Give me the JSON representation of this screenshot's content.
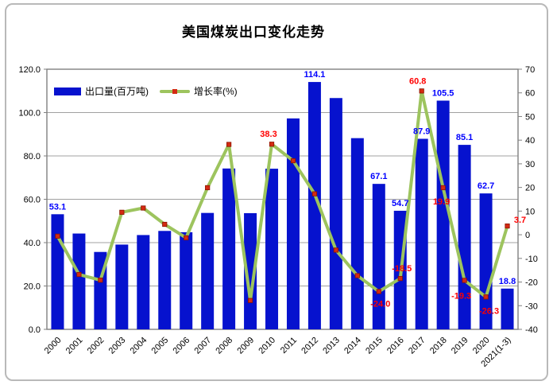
{
  "title": "美国煤炭出口变化走势",
  "legend": {
    "bar_label": "出口量(百万吨)",
    "line_label": "增长率(%)"
  },
  "colors": {
    "bar": "#0612CE",
    "bar_label": "#0000FF",
    "line": "#9DC45E",
    "marker": "#D42A12",
    "marker_stroke": "#8B1400",
    "line_label": "#FF0000",
    "grid": "#A0A0A0",
    "frame": "#808080",
    "axis_text": "#000000"
  },
  "chart_data": {
    "type": "bar",
    "combo": "bar + line (dual axis)",
    "title": "美国煤炭出口变化走势",
    "categories": [
      "2000",
      "2001",
      "2002",
      "2003",
      "2004",
      "2005",
      "2006",
      "2007",
      "2008",
      "2009",
      "2010",
      "2011",
      "2012",
      "2013",
      "2014",
      "2015",
      "2016",
      "2017",
      "2018",
      "2019",
      "2020",
      "2021(1-3)"
    ],
    "series": [
      {
        "name": "出口量(百万吨)",
        "type": "bar",
        "axis": "left",
        "values": [
          53.1,
          44.2,
          35.7,
          39.1,
          43.5,
          45.4,
          44.8,
          53.7,
          74.2,
          53.6,
          74.1,
          97.3,
          114.1,
          106.7,
          88.2,
          67.1,
          54.7,
          87.9,
          105.5,
          85.1,
          62.7,
          18.8
        ]
      },
      {
        "name": "增长率(%)",
        "type": "line",
        "axis": "right",
        "values": [
          -0.6,
          -16.8,
          -19.2,
          9.5,
          11.3,
          4.4,
          -1.3,
          19.9,
          38.2,
          -27.8,
          38.3,
          31.3,
          17.3,
          -6.5,
          -17.3,
          -24.0,
          -18.5,
          60.8,
          19.9,
          -19.3,
          -26.3,
          3.7
        ]
      }
    ],
    "bar_labels": {
      "0": "53.1",
      "12": "114.1",
      "15": "67.1",
      "16": "54.7",
      "17": "87.9",
      "18": "105.5",
      "19": "85.1",
      "20": "62.7",
      "21": "18.8"
    },
    "line_labels": {
      "10": {
        "text": "38.3",
        "dx": -4,
        "dy": -9
      },
      "15": {
        "text": "-24.0",
        "dx": 2,
        "dy": 19
      },
      "16": {
        "text": "-18.5",
        "dx": 2,
        "dy": -9
      },
      "17": {
        "text": "60.8",
        "dx": -5,
        "dy": -9
      },
      "18": {
        "text": "19.9",
        "dx": -2,
        "dy": 21
      },
      "19": {
        "text": "-19.3",
        "dx": -4,
        "dy": 23
      },
      "20": {
        "text": "-26.3",
        "dx": 4,
        "dy": 21
      },
      "21": {
        "text": "3.7",
        "dx": 16,
        "dy": -4
      }
    },
    "left_axis": {
      "min": 0,
      "max": 120,
      "step": 20,
      "labels": [
        "0.0",
        "20.0",
        "40.0",
        "60.0",
        "80.0",
        "100.0",
        "120.0"
      ]
    },
    "right_axis": {
      "min": -40,
      "max": 70,
      "step": 10,
      "labels": [
        "-40",
        "-30",
        "-20",
        "-10",
        "0",
        "10",
        "20",
        "30",
        "40",
        "50",
        "60",
        "70"
      ]
    },
    "grid": "horizontal, at left-axis ticks",
    "legend_position": "inside top-left"
  }
}
